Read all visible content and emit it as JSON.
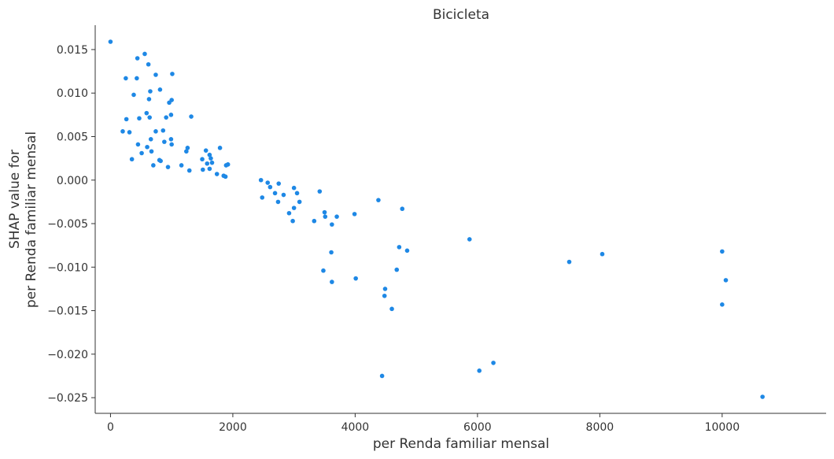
{
  "chart_data": {
    "type": "scatter",
    "title": "Bicicleta",
    "xlabel": "per Renda familiar mensal",
    "ylabel": [
      "SHAP value for",
      "per Renda familiar mensal"
    ],
    "xlim": [
      -250,
      11700
    ],
    "ylim": [
      -0.0268,
      0.0178
    ],
    "xticks": [
      0,
      2000,
      4000,
      6000,
      8000,
      10000
    ],
    "xtick_labels": [
      "0",
      "2000",
      "4000",
      "6000",
      "8000",
      "10000"
    ],
    "yticks": [
      0.015,
      0.01,
      0.005,
      0.0,
      -0.005,
      -0.01,
      -0.015,
      -0.02,
      -0.025
    ],
    "ytick_labels": [
      "0.015",
      "0.010",
      "0.005",
      "0.000",
      "−0.005",
      "−0.010",
      "−0.015",
      "−0.020",
      "−0.025"
    ],
    "grid": false,
    "point_color": "#1e88e5",
    "points": [
      [
        0,
        0.0159
      ],
      [
        200,
        0.0056
      ],
      [
        250,
        0.0117
      ],
      [
        260,
        0.007
      ],
      [
        310,
        0.0055
      ],
      [
        350,
        0.0024
      ],
      [
        380,
        0.0098
      ],
      [
        430,
        0.0117
      ],
      [
        440,
        0.014
      ],
      [
        450,
        0.0041
      ],
      [
        470,
        0.0071
      ],
      [
        510,
        0.0031
      ],
      [
        560,
        0.0145
      ],
      [
        590,
        0.0077
      ],
      [
        600,
        0.0038
      ],
      [
        620,
        0.0133
      ],
      [
        630,
        0.0093
      ],
      [
        640,
        0.0072
      ],
      [
        650,
        0.0102
      ],
      [
        660,
        0.0047
      ],
      [
        670,
        0.0033
      ],
      [
        700,
        0.0017
      ],
      [
        740,
        0.0121
      ],
      [
        740,
        0.0056
      ],
      [
        800,
        0.0023
      ],
      [
        810,
        0.0104
      ],
      [
        820,
        0.0022
      ],
      [
        860,
        0.0057
      ],
      [
        880,
        0.0044
      ],
      [
        910,
        0.0072
      ],
      [
        940,
        0.0015
      ],
      [
        960,
        0.0089
      ],
      [
        990,
        0.0075
      ],
      [
        990,
        0.0047
      ],
      [
        1000,
        0.0092
      ],
      [
        1000,
        0.0041
      ],
      [
        1010,
        0.0122
      ],
      [
        1160,
        0.0017
      ],
      [
        1240,
        0.0033
      ],
      [
        1260,
        0.0037
      ],
      [
        1290,
        0.0011
      ],
      [
        1320,
        0.0073
      ],
      [
        1500,
        0.0024
      ],
      [
        1510,
        0.0012
      ],
      [
        1560,
        0.0034
      ],
      [
        1580,
        0.0019
      ],
      [
        1620,
        0.0029
      ],
      [
        1620,
        0.0013
      ],
      [
        1640,
        0.0025
      ],
      [
        1660,
        0.002
      ],
      [
        1740,
        0.0007
      ],
      [
        1790,
        0.0037
      ],
      [
        1850,
        0.0005
      ],
      [
        1880,
        0.0004
      ],
      [
        1890,
        0.0017
      ],
      [
        1920,
        0.0018
      ],
      [
        2460,
        0.0
      ],
      [
        2480,
        -0.002
      ],
      [
        2570,
        -0.0003
      ],
      [
        2610,
        -0.0008
      ],
      [
        2690,
        -0.0015
      ],
      [
        2740,
        -0.0025
      ],
      [
        2750,
        -0.0004
      ],
      [
        2830,
        -0.0017
      ],
      [
        2920,
        -0.0038
      ],
      [
        2980,
        -0.0047
      ],
      [
        3000,
        -0.0032
      ],
      [
        3000,
        -0.0009
      ],
      [
        3050,
        -0.0015
      ],
      [
        3090,
        -0.0025
      ],
      [
        3330,
        -0.0047
      ],
      [
        3420,
        -0.0013
      ],
      [
        3480,
        -0.0104
      ],
      [
        3500,
        -0.0037
      ],
      [
        3510,
        -0.0042
      ],
      [
        3610,
        -0.0083
      ],
      [
        3620,
        -0.0051
      ],
      [
        3620,
        -0.0117
      ],
      [
        3700,
        -0.0042
      ],
      [
        3990,
        -0.0039
      ],
      [
        4010,
        -0.0113
      ],
      [
        4380,
        -0.0023
      ],
      [
        4440,
        -0.0225
      ],
      [
        4480,
        -0.0133
      ],
      [
        4490,
        -0.0125
      ],
      [
        4600,
        -0.0148
      ],
      [
        4680,
        -0.0103
      ],
      [
        4720,
        -0.0077
      ],
      [
        4770,
        -0.0033
      ],
      [
        4850,
        -0.0081
      ],
      [
        5870,
        -0.0068
      ],
      [
        6030,
        -0.0219
      ],
      [
        6260,
        -0.021
      ],
      [
        7500,
        -0.0094
      ],
      [
        8040,
        -0.0085
      ],
      [
        10000,
        -0.0082
      ],
      [
        10000,
        -0.0143
      ],
      [
        10060,
        -0.0115
      ],
      [
        10660,
        -0.0249
      ]
    ]
  }
}
